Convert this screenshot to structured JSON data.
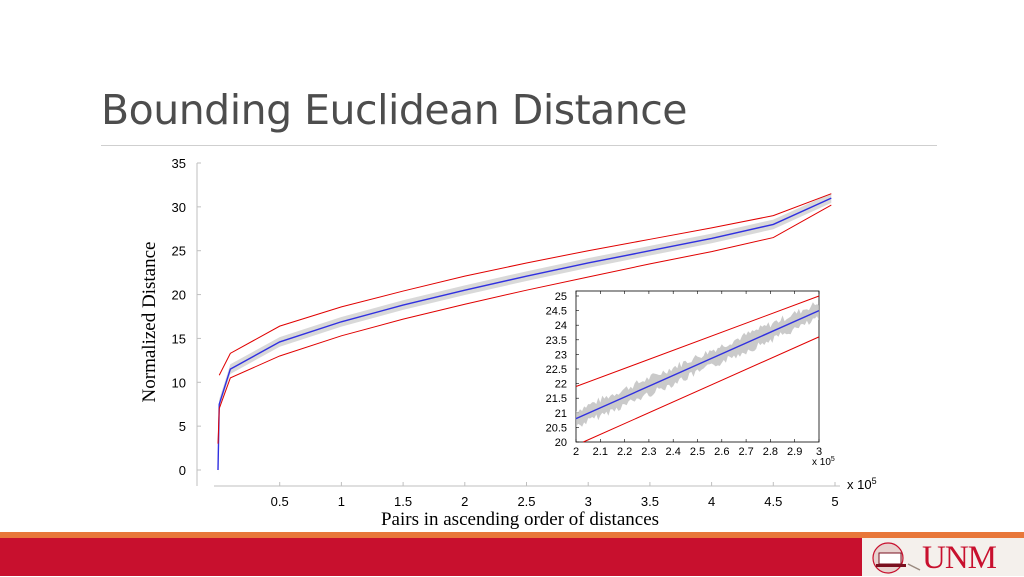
{
  "slide": {
    "title": "Bounding Euclidean Distance",
    "logo_text": "UNM"
  },
  "chart_data": [
    {
      "type": "line",
      "xlabel": "Pairs in ascending order of distances",
      "ylabel": "Normalized Distance",
      "x_multiplier": "x 10",
      "x_multiplier_exp": "5",
      "xlim": [
        0,
        5
      ],
      "ylim": [
        0,
        35
      ],
      "xticks": [
        "0.5",
        "1",
        "1.5",
        "2",
        "2.5",
        "3",
        "3.5",
        "4",
        "4.5",
        "5"
      ],
      "yticks": [
        "0",
        "5",
        "10",
        "15",
        "20",
        "25",
        "30",
        "35"
      ],
      "series": [
        {
          "color": "#e00000",
          "x": [
            0.01,
            0.1,
            0.5,
            1,
            1.5,
            2,
            2.5,
            3,
            3.5,
            4,
            4.5,
            4.97
          ],
          "values": [
            10.8,
            13.3,
            16.4,
            18.6,
            20.4,
            22.1,
            23.6,
            25.0,
            26.3,
            27.6,
            29.0,
            31.5
          ]
        },
        {
          "color": "#3030e0",
          "x": [
            0.0,
            0.01,
            0.1,
            0.5,
            1,
            1.5,
            2,
            2.5,
            3,
            3.5,
            4,
            4.5,
            4.97
          ],
          "values": [
            0.0,
            7.5,
            11.5,
            14.6,
            16.9,
            18.8,
            20.5,
            22.1,
            23.6,
            25.0,
            26.4,
            28.0,
            31.0
          ]
        },
        {
          "color": "#e00000",
          "x": [
            0.0,
            0.01,
            0.1,
            0.5,
            1,
            1.5,
            2,
            2.5,
            3,
            3.5,
            4,
            4.5,
            4.97
          ],
          "values": [
            3.0,
            7.0,
            10.5,
            13.0,
            15.3,
            17.2,
            18.9,
            20.5,
            22.0,
            23.5,
            24.9,
            26.5,
            30.2
          ]
        }
      ]
    },
    {
      "type": "line",
      "x_multiplier": "x 10",
      "x_multiplier_exp": "5",
      "xlim": [
        2,
        3
      ],
      "ylim": [
        20,
        25
      ],
      "xticks": [
        "2",
        "2.1",
        "2.2",
        "2.3",
        "2.4",
        "2.5",
        "2.6",
        "2.7",
        "2.8",
        "2.9",
        "3"
      ],
      "yticks": [
        "20",
        "20.5",
        "21",
        "21.5",
        "22",
        "22.5",
        "23",
        "23.5",
        "24",
        "24.5",
        "25"
      ],
      "series": [
        {
          "color": "#e00000",
          "x": [
            2,
            3
          ],
          "values": [
            21.9,
            25.0
          ]
        },
        {
          "color": "#3030e0",
          "x": [
            2,
            3
          ],
          "values": [
            20.8,
            24.5
          ]
        },
        {
          "color": "#e00000",
          "x": [
            2.03,
            3
          ],
          "values": [
            20.0,
            23.6
          ]
        }
      ]
    }
  ]
}
